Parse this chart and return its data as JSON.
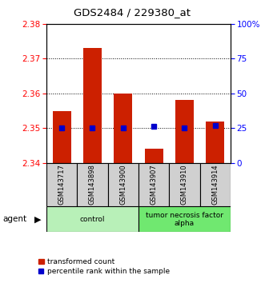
{
  "title": "GDS2484 / 229380_at",
  "samples": [
    "GSM143717",
    "GSM143898",
    "GSM143900",
    "GSM143907",
    "GSM143910",
    "GSM143914"
  ],
  "red_values": [
    2.355,
    2.373,
    2.36,
    2.344,
    2.358,
    2.352
  ],
  "blue_values": [
    25,
    25,
    25,
    26,
    25,
    27
  ],
  "ylim_left": [
    2.34,
    2.38
  ],
  "ylim_right": [
    0,
    100
  ],
  "yticks_left": [
    2.34,
    2.35,
    2.36,
    2.37,
    2.38
  ],
  "yticks_right": [
    0,
    25,
    50,
    75,
    100
  ],
  "ytick_labels_right": [
    "0",
    "25",
    "50",
    "75",
    "100%"
  ],
  "groups": [
    {
      "label": "control",
      "indices": [
        0,
        1,
        2
      ],
      "color": "#b8f0b8"
    },
    {
      "label": "tumor necrosis factor\nalpha",
      "indices": [
        3,
        4,
        5
      ],
      "color": "#70e870"
    }
  ],
  "agent_label": "agent",
  "legend_red": "transformed count",
  "legend_blue": "percentile rank within the sample",
  "bar_color": "#cc2000",
  "blue_color": "#0000cc",
  "bar_width": 0.6,
  "sample_box_color": "#d0d0d0"
}
